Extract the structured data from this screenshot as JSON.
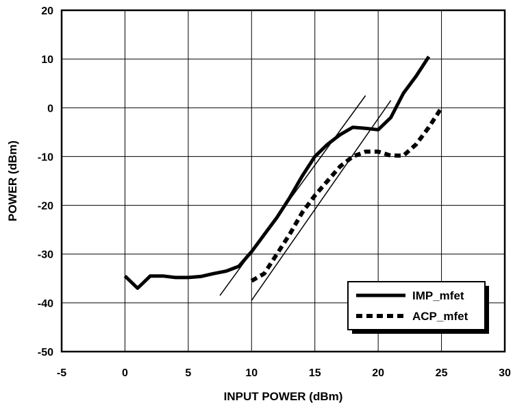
{
  "chart_data": {
    "type": "line",
    "title": "",
    "xlabel": "INPUT POWER (dBm)",
    "ylabel": "POWER (dBm)",
    "xlim": [
      -5,
      30
    ],
    "ylim": [
      -50,
      20
    ],
    "xticks": [
      -5,
      0,
      5,
      10,
      15,
      20,
      25,
      30
    ],
    "yticks": [
      -50,
      -40,
      -30,
      -20,
      -10,
      0,
      10,
      20
    ],
    "grid": true,
    "legend_position": "bottom-right",
    "series": [
      {
        "name": "IMP_mfet",
        "style": "solid",
        "x": [
          0,
          1,
          2,
          3,
          4,
          5,
          6,
          7,
          8,
          9,
          10,
          11,
          12,
          13,
          14,
          15,
          16,
          17,
          18,
          19,
          20,
          21,
          22,
          23,
          24
        ],
        "y": [
          -34.5,
          -37,
          -34.5,
          -34.5,
          -34.8,
          -34.8,
          -34.6,
          -34,
          -33.5,
          -32.5,
          -29.5,
          -26,
          -22.5,
          -18.5,
          -14,
          -10,
          -7.5,
          -5.5,
          -4,
          -4.2,
          -4.5,
          -2,
          3,
          6.5,
          10.5
        ]
      },
      {
        "name": "ACP_mfet",
        "style": "dashed",
        "x": [
          10,
          11,
          12,
          13,
          14,
          15,
          16,
          17,
          18,
          19,
          20,
          21,
          22,
          23,
          24,
          25
        ],
        "y": [
          -35.5,
          -34,
          -30,
          -26,
          -21.5,
          -18,
          -15,
          -12,
          -10,
          -9,
          -9,
          -9.8,
          -9.8,
          -7.5,
          -4,
          0
        ]
      }
    ],
    "reference_lines": [
      {
        "x": [
          7.5,
          19
        ],
        "y": [
          -38.5,
          2.5
        ]
      },
      {
        "x": [
          10,
          21
        ],
        "y": [
          -39.5,
          1.5
        ]
      }
    ]
  }
}
